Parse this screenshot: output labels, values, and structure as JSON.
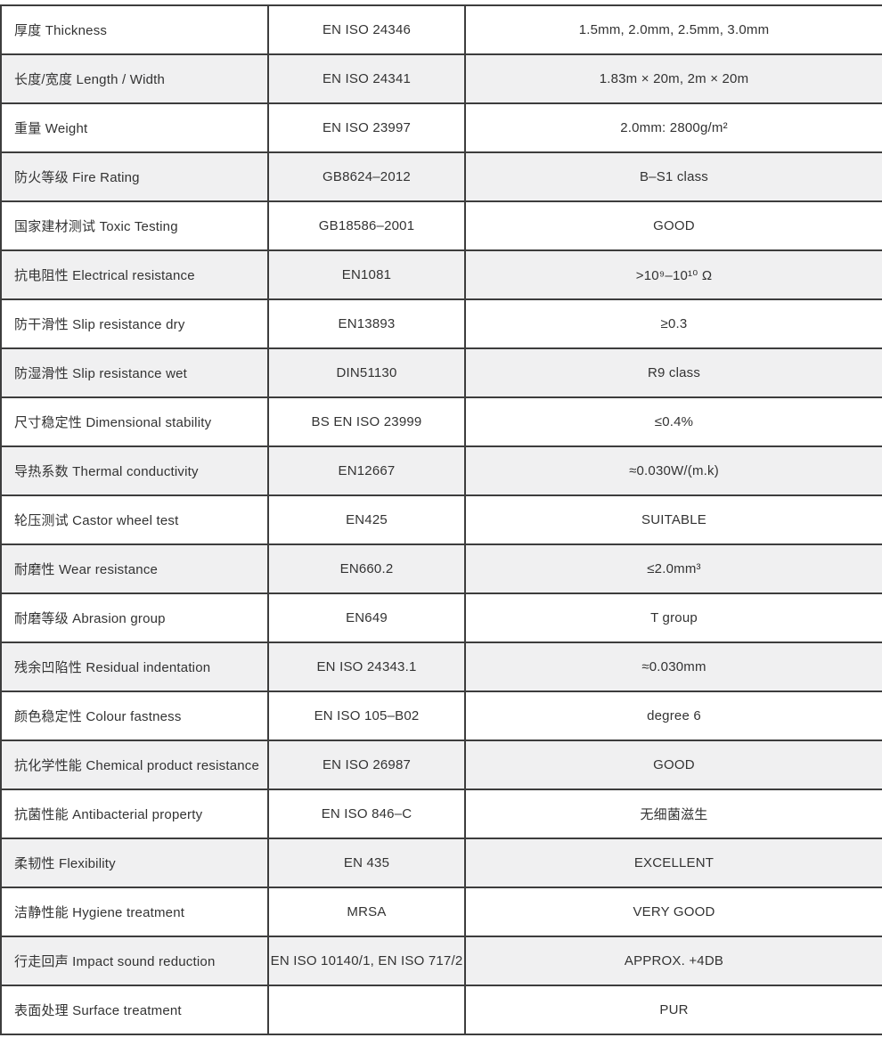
{
  "page": {
    "background_color": "#ffffff",
    "border_color": "#3d3d3d",
    "stripe_color": "#f0f0f1",
    "text_color": "#333333"
  },
  "table": {
    "columns": [
      "property",
      "standard",
      "value"
    ],
    "rows": [
      {
        "property": "厚度 Thickness",
        "standard": "EN ISO 24346",
        "value": "1.5mm, 2.0mm, 2.5mm, 3.0mm"
      },
      {
        "property": "长度/宽度 Length / Width",
        "standard": "EN ISO 24341",
        "value": "1.83m × 20m, 2m × 20m"
      },
      {
        "property": "重量 Weight",
        "standard": "EN ISO 23997",
        "value": "2.0mm: 2800g/m²"
      },
      {
        "property": "防火等级 Fire Rating",
        "standard": "GB8624–2012",
        "value": "B–S1 class"
      },
      {
        "property": "国家建材测试 Toxic Testing",
        "standard": "GB18586–2001",
        "value": "GOOD"
      },
      {
        "property": "抗电阻性 Electrical resistance",
        "standard": "EN1081",
        "value": ">10⁹–10¹⁰ Ω"
      },
      {
        "property": "防干滑性 Slip resistance dry",
        "standard": "EN13893",
        "value": "≥0.3"
      },
      {
        "property": "防湿滑性 Slip resistance wet",
        "standard": "DIN51130",
        "value": "R9 class"
      },
      {
        "property": "尺寸稳定性 Dimensional stability",
        "standard": "BS EN ISO 23999",
        "value": "≤0.4%"
      },
      {
        "property": "导热系数 Thermal conductivity",
        "standard": "EN12667",
        "value": "≈0.030W/(m.k)"
      },
      {
        "property": "轮压测试 Castor wheel test",
        "standard": "EN425",
        "value": "SUITABLE"
      },
      {
        "property": "耐磨性 Wear resistance",
        "standard": "EN660.2",
        "value": "≤2.0mm³"
      },
      {
        "property": "耐磨等级 Abrasion group",
        "standard": "EN649",
        "value": "T group"
      },
      {
        "property": "残余凹陷性 Residual indentation",
        "standard": "EN ISO 24343.1",
        "value": "≈0.030mm"
      },
      {
        "property": "颜色稳定性 Colour fastness",
        "standard": "EN ISO 105–B02",
        "value": "degree 6"
      },
      {
        "property": "抗化学性能 Chemical product resistance",
        "standard": "EN ISO 26987",
        "value": "GOOD"
      },
      {
        "property": "抗菌性能 Antibacterial property",
        "standard": "EN ISO 846–C",
        "value": "无细菌滋生"
      },
      {
        "property": "柔韧性 Flexibility",
        "standard": "EN 435",
        "value": "EXCELLENT"
      },
      {
        "property": "洁静性能 Hygiene treatment",
        "standard": "MRSA",
        "value": "VERY GOOD"
      },
      {
        "property": "行走回声 Impact sound reduction",
        "standard": "EN ISO 10140/1, EN ISO 717/2",
        "value": "APPROX. +4DB"
      },
      {
        "property": "表面处理 Surface treatment",
        "standard": "",
        "value": "PUR"
      }
    ]
  }
}
